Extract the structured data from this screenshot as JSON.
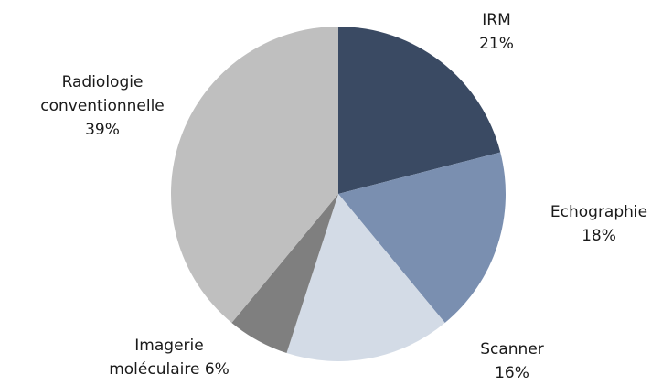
{
  "chart_data": {
    "type": "pie",
    "categories": [
      "IRM",
      "Echographie",
      "Scanner",
      "Imagerie moléculaire",
      "Radiologie conventionnelle"
    ],
    "values": [
      21,
      18,
      16,
      6,
      39
    ],
    "value_labels": [
      "21%",
      "18%",
      "16%",
      "6%",
      "39%"
    ],
    "colors": [
      "#3a4a63",
      "#7a8fb0",
      "#d3dbe6",
      "#7f7f7f",
      "#bfbfbf"
    ]
  }
}
